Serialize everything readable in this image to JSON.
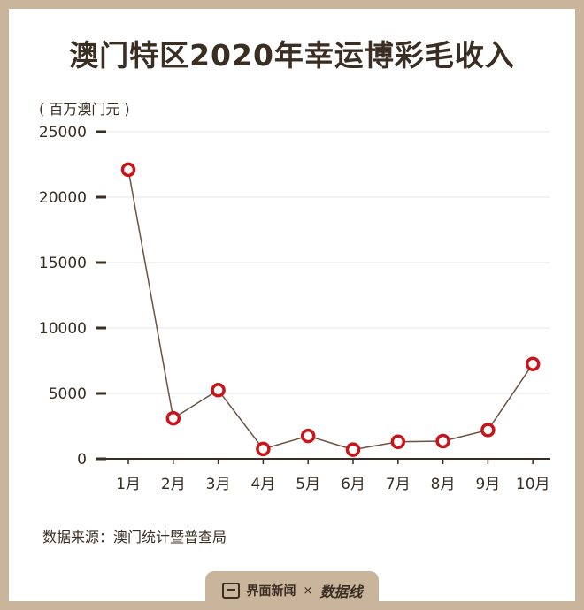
{
  "title": "澳门特区2020年幸运博彩毛收入",
  "unit_label": "( 百万澳门元 )",
  "source": "数据来源：澳门统计暨普查局",
  "footer": {
    "brand": "界面新闻",
    "separator": "×",
    "brand2": "数据线"
  },
  "colors": {
    "line": "#6b5241",
    "marker_stroke": "#c8151b",
    "marker_fill": "#ffffff",
    "axis": "#3a2d22",
    "grid": "#e4e4e4",
    "background": "#c9b49c"
  },
  "chart_data": {
    "type": "line",
    "title": "澳门特区2020年幸运博彩毛收入",
    "ylabel": "( 百万澳门元 )",
    "xlabel": "",
    "categories": [
      "1月",
      "2月",
      "3月",
      "4月",
      "5月",
      "6月",
      "7月",
      "8月",
      "9月",
      "10月"
    ],
    "series": [
      {
        "values": [
          22100,
          3100,
          5250,
          750,
          1750,
          700,
          1300,
          1350,
          2200,
          7250
        ]
      }
    ],
    "ylim": [
      0,
      25000
    ],
    "yticks": [
      "0",
      "5000",
      "10000",
      "15000",
      "20000",
      "25000"
    ],
    "grid": true
  }
}
